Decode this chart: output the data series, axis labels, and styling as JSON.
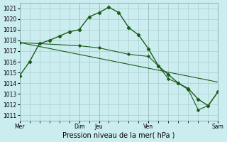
{
  "title": "Pression niveau de la mer( hPa )",
  "bg_color": "#ccedf0",
  "grid_color": "#aacccc",
  "line_color": "#1a5c1a",
  "ylim": [
    1010.5,
    1021.5
  ],
  "yticks": [
    1011,
    1012,
    1013,
    1014,
    1015,
    1016,
    1017,
    1018,
    1019,
    1020,
    1021
  ],
  "xtick_labels": [
    "Mer",
    "Dim",
    "Jeu",
    "Ven",
    "Sam"
  ],
  "xtick_positions": [
    0,
    6,
    8,
    13,
    20
  ],
  "vlines": [
    0,
    6,
    8,
    13,
    20
  ],
  "line1_x": [
    0,
    1,
    2,
    3,
    4,
    5,
    6,
    7,
    8,
    9,
    10,
    11,
    12,
    13,
    14,
    15,
    16,
    17,
    18,
    19,
    20
  ],
  "line1_y": [
    1014.7,
    1016.0,
    1017.7,
    1018.0,
    1018.4,
    1018.8,
    1019.0,
    1020.2,
    1020.6,
    1021.1,
    1020.6,
    1019.2,
    1018.5,
    1017.2,
    1015.6,
    1014.8,
    1014.0,
    1013.5,
    1012.5,
    1011.9,
    1013.2
  ],
  "line2_x": [
    0,
    20
  ],
  "line2_y": [
    1017.8,
    1014.1
  ],
  "line3_x": [
    0,
    6,
    8,
    11,
    13,
    14,
    15,
    16,
    17,
    18,
    19,
    20
  ],
  "line3_y": [
    1017.8,
    1017.5,
    1017.3,
    1016.7,
    1016.5,
    1015.6,
    1014.4,
    1014.0,
    1013.4,
    1011.5,
    1011.9,
    1013.2
  ],
  "tick_fontsize": 5.5,
  "xlabel_fontsize": 7
}
